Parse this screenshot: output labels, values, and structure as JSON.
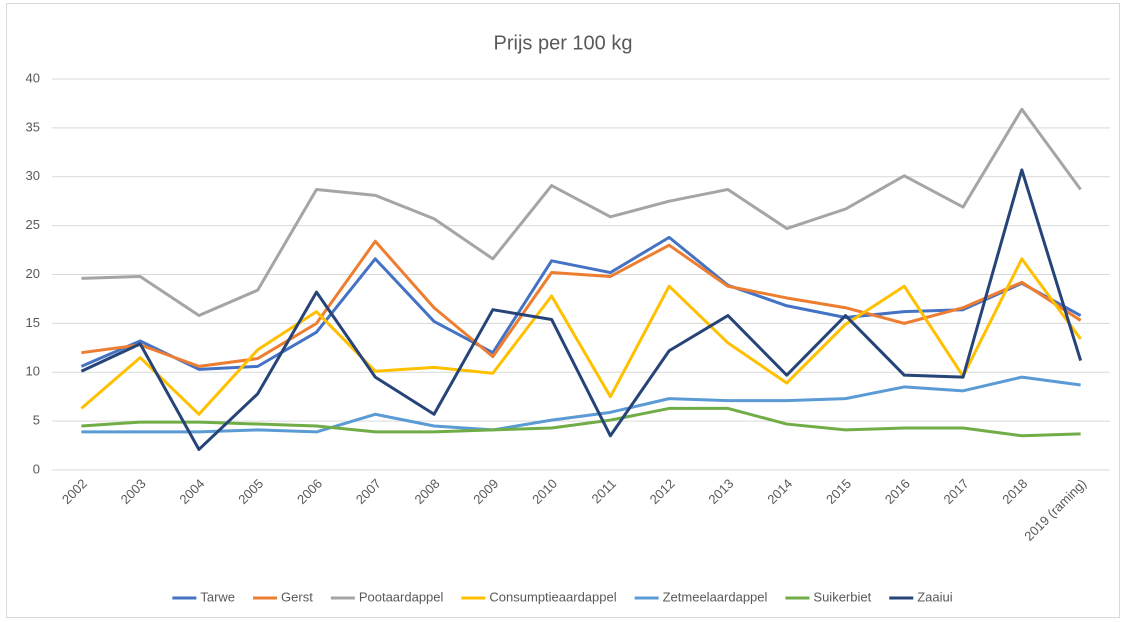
{
  "chart_data": {
    "type": "line",
    "title": "Prijs per 100 kg",
    "categories": [
      "2002",
      "2003",
      "2004",
      "2005",
      "2006",
      "2007",
      "2008",
      "2009",
      "2010",
      "2011",
      "2012",
      "2013",
      "2014",
      "2015",
      "2016",
      "2017",
      "2018",
      "2019 (raming)"
    ],
    "ylim": [
      0,
      40
    ],
    "yticks": [
      0,
      5,
      10,
      15,
      20,
      25,
      30,
      35,
      40
    ],
    "grid": true,
    "legend": "bottom",
    "series": [
      {
        "name": "Tarwe",
        "color": "#4472c4",
        "values": [
          10.6,
          13.2,
          10.3,
          10.6,
          14.1,
          21.6,
          15.2,
          12.0,
          21.4,
          20.2,
          23.8,
          18.9,
          16.8,
          15.6,
          16.2,
          16.4,
          19.1,
          15.8
        ]
      },
      {
        "name": "Gerst",
        "color": "#ed7d31",
        "values": [
          12.0,
          12.8,
          10.6,
          11.4,
          15.0,
          23.4,
          16.6,
          11.6,
          20.2,
          19.8,
          23.0,
          18.8,
          17.6,
          16.6,
          15.0,
          16.6,
          19.2,
          15.3
        ]
      },
      {
        "name": "Pootaardappel",
        "color": "#a5a5a5",
        "values": [
          19.6,
          19.8,
          15.8,
          18.4,
          28.7,
          28.1,
          25.7,
          21.6,
          29.1,
          25.9,
          27.5,
          28.7,
          24.7,
          26.7,
          30.1,
          26.9,
          36.9,
          28.7
        ]
      },
      {
        "name": "Consumptieaardappel",
        "color": "#ffc000",
        "values": [
          6.3,
          11.5,
          5.7,
          12.3,
          16.2,
          10.1,
          10.5,
          9.9,
          17.8,
          7.5,
          18.8,
          13.0,
          8.9,
          14.9,
          18.8,
          9.6,
          21.6,
          13.4
        ]
      },
      {
        "name": "Zetmeelaardappel",
        "color": "#5b9bd5",
        "values": [
          3.9,
          3.9,
          3.9,
          4.1,
          3.9,
          5.7,
          4.5,
          4.1,
          5.1,
          5.9,
          7.3,
          7.1,
          7.1,
          7.3,
          8.5,
          8.1,
          9.5,
          8.7
        ]
      },
      {
        "name": "Suikerbiet",
        "color": "#70ad47",
        "values": [
          4.5,
          4.9,
          4.9,
          4.7,
          4.5,
          3.9,
          3.9,
          4.1,
          4.3,
          5.1,
          6.3,
          6.3,
          4.7,
          4.1,
          4.3,
          4.3,
          3.5,
          3.7
        ]
      },
      {
        "name": "Zaaiui",
        "color": "#264478",
        "values": [
          10.1,
          12.9,
          2.1,
          7.8,
          18.2,
          9.5,
          5.7,
          16.4,
          15.4,
          3.5,
          12.2,
          15.8,
          9.7,
          15.8,
          9.7,
          9.5,
          30.7,
          11.2
        ]
      }
    ]
  }
}
